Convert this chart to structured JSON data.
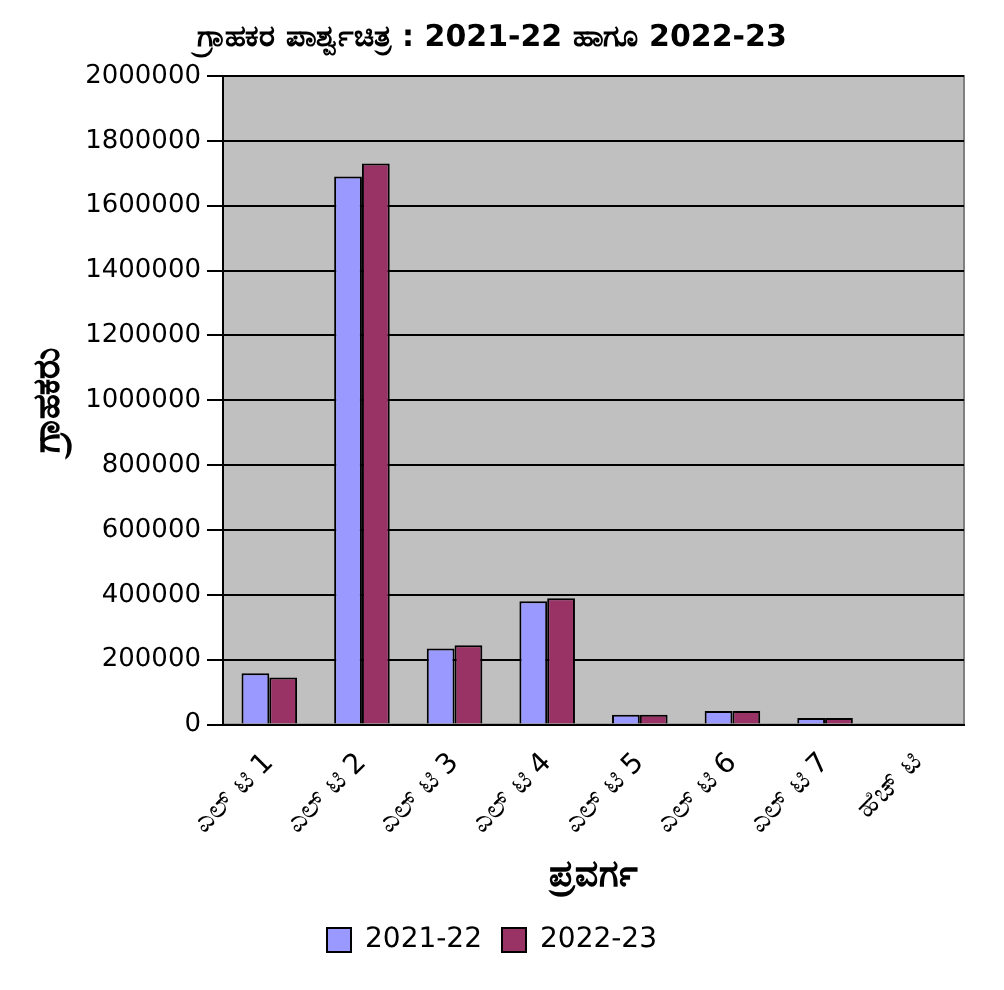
{
  "chart_data": {
    "type": "bar",
    "title": "ಗ್ರಾಹಕರ ಪಾರ್ಶ್ವಚಿತ್ರ : 2021-22 ಹಾಗೂ 2022-23",
    "xlabel": "ಪ್ರವರ್ಗ",
    "ylabel": "ಗ್ರಾಹಕರು",
    "categories": [
      "ಎಲ್ ಟಿ 1",
      "ಎಲ್ ಟಿ 2",
      "ಎಲ್ ಟಿ 3",
      "ಎಲ್ ಟಿ 4",
      "ಎಲ್ ಟಿ 5",
      "ಎಲ್ ಟಿ 6",
      "ಎಲ್ ಟಿ 7",
      "ಹೆಚ್ ಟಿ"
    ],
    "series": [
      {
        "name": "2021-22",
        "color": "#9999ff",
        "values": [
          158000,
          1690000,
          235000,
          380000,
          30000,
          42000,
          20000,
          null
        ]
      },
      {
        "name": "2022-23",
        "color": "#993366",
        "values": [
          145000,
          1730000,
          245000,
          390000,
          30000,
          42000,
          20000,
          null
        ]
      }
    ],
    "ylim": [
      0,
      2000000
    ],
    "yticks": [
      0,
      200000,
      400000,
      600000,
      800000,
      1000000,
      1200000,
      1400000,
      1600000,
      1800000,
      2000000
    ],
    "grid": "y",
    "legend": "bottom"
  }
}
